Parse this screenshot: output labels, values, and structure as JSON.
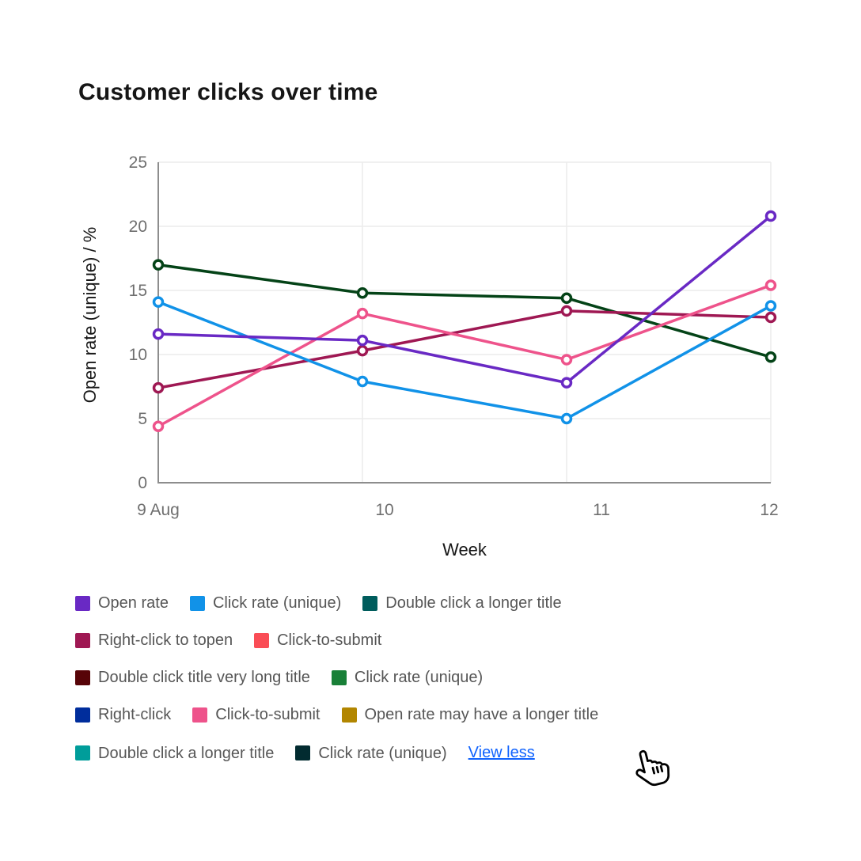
{
  "title": "Customer clicks over time",
  "chart_data": {
    "type": "line",
    "title": "Customer clicks over time",
    "x": [
      "9 Aug",
      "10",
      "11",
      "12"
    ],
    "xlabel": "Week",
    "ylabel": "Open rate (unique) / %",
    "ylim": [
      0,
      25
    ],
    "y_ticks": [
      0,
      5,
      10,
      15,
      20,
      25
    ],
    "grid": true,
    "markers": "hollow-circle",
    "legend_position": "bottom",
    "series": [
      {
        "name": "Double click a longer title",
        "color": "#044317",
        "values": [
          17.0,
          14.8,
          14.4,
          9.8
        ]
      },
      {
        "name": "Right-click to topen",
        "color": "#9f1853",
        "values": [
          7.4,
          10.3,
          13.4,
          12.9
        ]
      },
      {
        "name": "Click-to-submit",
        "color": "#ee538b",
        "values": [
          4.4,
          13.2,
          9.6,
          15.4
        ]
      },
      {
        "name": "Click rate (unique)",
        "color": "#1192e8",
        "values": [
          14.1,
          7.9,
          5.0,
          13.8
        ]
      },
      {
        "name": "Open rate",
        "color": "#6929c4",
        "values": [
          11.6,
          11.1,
          7.8,
          20.8
        ]
      }
    ]
  },
  "legend": {
    "rows": [
      [
        {
          "label": "Open rate",
          "color": "#6929c4"
        },
        {
          "label": "Click rate (unique)",
          "color": "#1192e8"
        },
        {
          "label": "Double click a longer title",
          "color": "#005d5d"
        }
      ],
      [
        {
          "label": "Right-click to topen",
          "color": "#9f1853"
        },
        {
          "label": "Click-to-submit",
          "color": "#fa4d56"
        }
      ],
      [
        {
          "label": "Double click title very long title",
          "color": "#570408"
        },
        {
          "label": "Click rate (unique)",
          "color": "#198038"
        }
      ],
      [
        {
          "label": "Right-click",
          "color": "#002d9c"
        },
        {
          "label": "Click-to-submit",
          "color": "#ee538b"
        },
        {
          "label": "Open rate may have a longer title",
          "color": "#b28600"
        }
      ],
      [
        {
          "label": "Double click a longer title",
          "color": "#009d9a"
        },
        {
          "label": "Click rate (unique)",
          "color": "#022b30"
        }
      ]
    ],
    "view_toggle_label": "View less"
  },
  "colors": {
    "title_text": "#161616",
    "axis_title_text": "#161616",
    "tick_text": "#6f6f6f",
    "legend_text": "#565656",
    "axis_line": "#8d8d8d",
    "grid_line": "#ececec",
    "link": "#0f62fe"
  },
  "cursor": {
    "type": "hand-pointer"
  }
}
